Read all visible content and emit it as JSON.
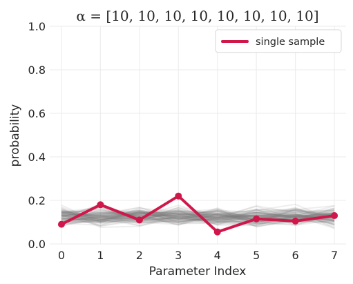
{
  "chart_data": {
    "type": "line",
    "title": "α = [10, 10, 10, 10, 10, 10, 10, 10]",
    "xlabel": "Parameter Index",
    "ylabel": "probability",
    "x": [
      0,
      1,
      2,
      3,
      4,
      5,
      6,
      7
    ],
    "x_tick_labels": [
      "0",
      "1",
      "2",
      "3",
      "4",
      "5",
      "6",
      "7"
    ],
    "y_tick_labels": [
      "0.0",
      "0.2",
      "0.4",
      "0.6",
      "0.8",
      "1.0"
    ],
    "y_ticks": [
      0.0,
      0.2,
      0.4,
      0.6,
      0.8,
      1.0
    ],
    "xlim": [
      -0.3,
      7.3
    ],
    "ylim": [
      0.0,
      1.0
    ],
    "grid": true,
    "legend_position": "top-right",
    "series": [
      {
        "name": "single sample",
        "values": [
          0.09,
          0.18,
          0.11,
          0.22,
          0.055,
          0.115,
          0.105,
          0.13
        ],
        "color": "#d0174a",
        "markers": true
      }
    ],
    "background_samples": {
      "color": "#7a7a7a",
      "approx_range": [
        0.04,
        0.29
      ],
      "typical_value": 0.125
    }
  }
}
